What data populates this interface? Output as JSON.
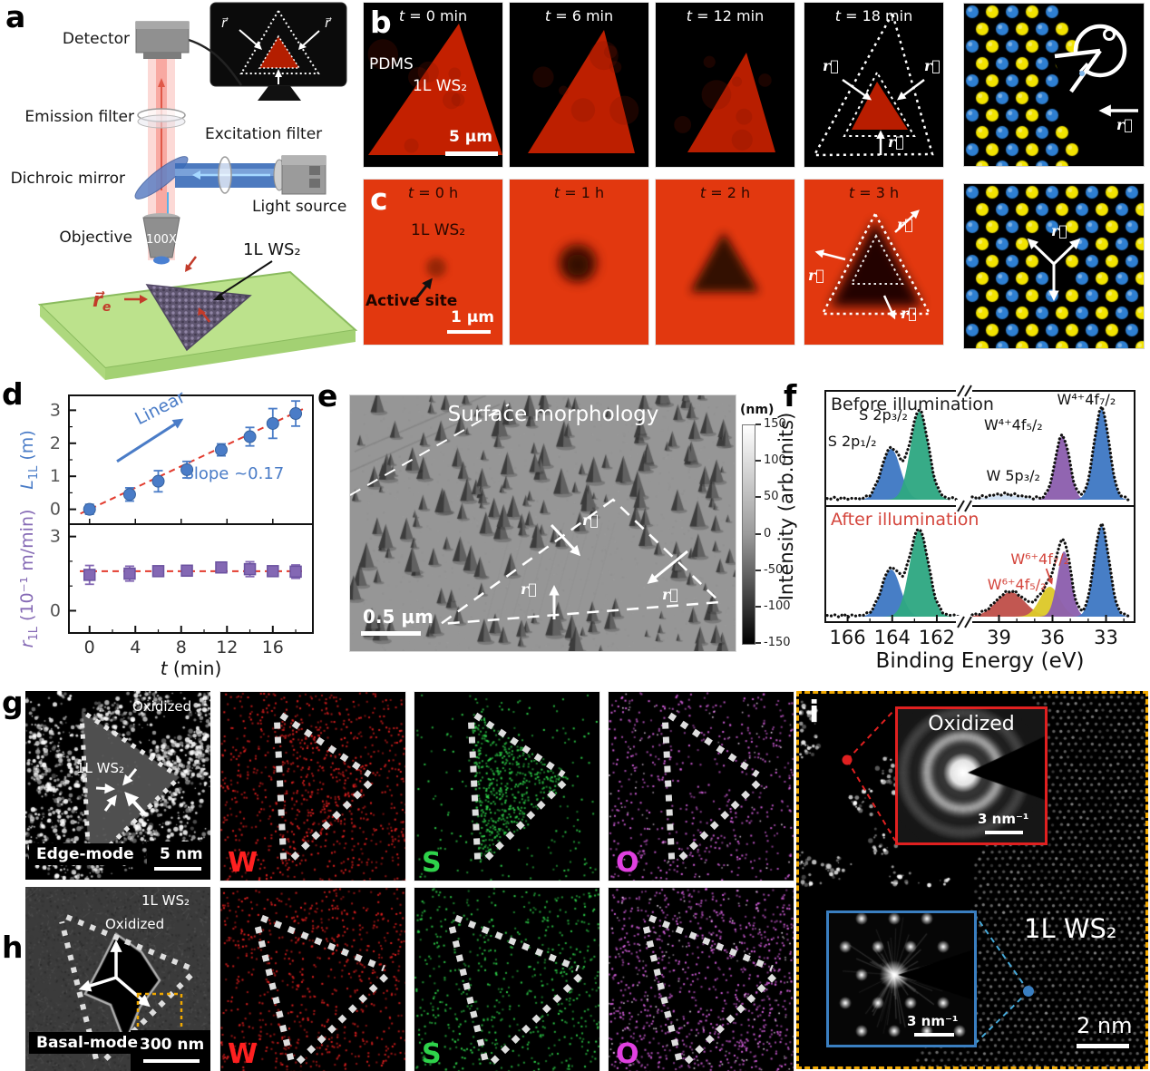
{
  "panels": {
    "a": "a",
    "b": "b",
    "c": "c",
    "d": "d",
    "e": "e",
    "f": "f",
    "g": "g",
    "h": "h",
    "i": "i"
  },
  "panel_a": {
    "detector": "Detector",
    "emission_filter": "Emission filter",
    "dichroic_mirror": "Dichroic mirror",
    "objective": "Objective",
    "excitation_filter": "Excitation filter",
    "light_source": "Light source",
    "magnification": "100X",
    "sample": "1L WS₂",
    "r_e_base": "r⃗",
    "r_e_sub": "e",
    "r": "r⃗"
  },
  "panel_b": {
    "frames": [
      {
        "t": "t",
        "rest": " = 0 min"
      },
      {
        "t": "t",
        "rest": " = 6 min"
      },
      {
        "t": "t",
        "rest": " = 12 min"
      },
      {
        "t": "t",
        "rest": " = 18 min"
      }
    ],
    "pdms": "PDMS",
    "sample": "1L WS₂",
    "scalebar": "5 μm",
    "r": "r⃗"
  },
  "panel_c": {
    "frames": [
      {
        "t": "t",
        "rest": " = 0 h"
      },
      {
        "t": "t",
        "rest": " = 1 h"
      },
      {
        "t": "t",
        "rest": " = 2 h"
      },
      {
        "t": "t",
        "rest": " = 3 h"
      }
    ],
    "sample": "1L WS₂",
    "active_site": "Active site",
    "scalebar": "1 μm",
    "r": "r⃗"
  },
  "panel_e": {
    "title": "Surface morphology",
    "scalebar": "0.5 μm",
    "r": "r⃗"
  },
  "panel_g": {
    "oxidized": "Oxidized",
    "sample": "1L WS₂",
    "mode": "Edge-mode",
    "scalebar": "5 nm",
    "elements": [
      "W",
      "S",
      "O"
    ]
  },
  "panel_h": {
    "sample": "1L WS₂",
    "oxidized": "Oxidized",
    "mode": "Basal-mode",
    "scalebar": "300 nm",
    "elements": [
      "W",
      "S",
      "O"
    ]
  },
  "panel_i": {
    "oxidized": "Oxidized",
    "inset_scale": "3 nm⁻¹",
    "sample": "1L WS₂",
    "scalebar": "2 nm"
  },
  "colors": {
    "w_map": "#e62020",
    "s_map": "#2ed24a",
    "o_map": "#d860e0",
    "fluorescence_red": "#c32000",
    "c_background": "#e2380f",
    "series_blue": "#4a7cc7",
    "series_purple": "#8468b4",
    "fit_line": "#e23b2e",
    "xps_blue": "#3f79c4",
    "xps_green": "#2fa882",
    "xps_purple": "#8d5fae",
    "xps_red": "#c0504a",
    "xps_yellow": "#ddc92a",
    "inset_red_border": "#e02020",
    "inset_blue_border": "#3a7fc1",
    "panel_i_border": "#f0a800",
    "atom_blue": "#2e7fd2",
    "atom_yellow": "#f2e300"
  },
  "chart_data": [
    {
      "id": "panel_d_length",
      "type": "scatter",
      "x": [
        0,
        3.5,
        6,
        8.5,
        11.5,
        14,
        16,
        18
      ],
      "y": [
        0.0,
        0.45,
        0.85,
        1.2,
        1.8,
        2.2,
        2.6,
        2.9
      ],
      "yerr": [
        0.15,
        0.2,
        0.32,
        0.25,
        0.18,
        0.28,
        0.45,
        0.38
      ],
      "xlabel": {
        "t": "t",
        "rest": " (min)"
      },
      "ylabel": {
        "base": "L",
        "sub": "1L",
        "rest": " (m)"
      },
      "xticks": [
        0,
        4,
        8,
        12,
        16
      ],
      "yticks": [
        0,
        1,
        2,
        3
      ],
      "xlim": [
        -1.8,
        19.5
      ],
      "ylim": [
        -0.45,
        3.45
      ],
      "annotations": {
        "linear": "Linear",
        "slope": "Slope ~0.17"
      },
      "fit": {
        "slope": 0.163,
        "intercept": 0
      },
      "marker": "circle"
    },
    {
      "id": "panel_d_rate",
      "type": "scatter",
      "x": [
        0,
        3.5,
        6,
        8.5,
        11.5,
        14,
        16,
        18
      ],
      "y": [
        1.45,
        1.5,
        1.6,
        1.62,
        1.75,
        1.68,
        1.6,
        1.58
      ],
      "yerr": [
        0.38,
        0.3,
        0.18,
        0.15,
        0.12,
        0.3,
        0.15,
        0.27
      ],
      "ylabel": {
        "base": "r",
        "sub": "1L",
        "rest": " (10⁻¹ m/min)"
      },
      "xticks": [
        0,
        4,
        8,
        12,
        16
      ],
      "yticks": [
        0,
        3
      ],
      "xlim": [
        -1.8,
        19.5
      ],
      "ylim": [
        -0.9,
        3.5
      ],
      "mean_line": 1.6,
      "marker": "square"
    },
    {
      "id": "panel_f_xps",
      "type": "area",
      "xlabel": "Binding Energy (eV)",
      "ylabel": "Intensity (arb.units)",
      "left_xticks": [
        166,
        164,
        162
      ],
      "right_xticks": [
        39,
        36,
        33
      ],
      "left_range": [
        167.0,
        160.9
      ],
      "right_range": [
        40.6,
        31.4
      ],
      "panels": [
        {
          "label": "Before illumination",
          "label_color": "#1a1a1a",
          "left_peaks": [
            {
              "name": "S 2p₁/₂",
              "center": 164.05,
              "sigma": 0.42,
              "height": 0.56,
              "color": "#3f79c4"
            },
            {
              "name": "S 2p₃/₂",
              "center": 162.78,
              "sigma": 0.4,
              "height": 0.97,
              "color": "#2fa882"
            }
          ],
          "right_peaks": [
            {
              "name": "W 5p₃/₂",
              "center": 38.7,
              "sigma": 0.9,
              "height": 0.05,
              "color": "#cfe0f2"
            },
            {
              "name": "W⁴⁺4f₅/₂",
              "center": 35.45,
              "sigma": 0.4,
              "height": 0.7,
              "color": "#8d5fae"
            },
            {
              "name": "W⁴⁺4f₇/₂",
              "center": 33.25,
              "sigma": 0.42,
              "height": 1.0,
              "color": "#3f79c4"
            }
          ]
        },
        {
          "label": "After illumination",
          "label_color": "#d4453c",
          "left_peaks": [
            {
              "name": "S 2p₁/₂",
              "center": 164.05,
              "sigma": 0.42,
              "height": 0.52,
              "color": "#3f79c4"
            },
            {
              "name": "S 2p₃/₂",
              "center": 162.8,
              "sigma": 0.42,
              "height": 0.95,
              "color": "#2fa882"
            }
          ],
          "right_peaks": [
            {
              "name": "W⁶⁺4f₅/₂",
              "center": 38.35,
              "sigma": 0.8,
              "height": 0.27,
              "color": "#c0504a"
            },
            {
              "name": "W⁶⁺4f₇/₂",
              "center": 36.15,
              "sigma": 0.55,
              "height": 0.33,
              "color": "#ddc92a"
            },
            {
              "name": "W⁴⁺4f₅/₂",
              "center": 35.35,
              "sigma": 0.38,
              "height": 0.72,
              "color": "#8d5fae"
            },
            {
              "name": "W⁴⁺4f₇/₂",
              "center": 33.25,
              "sigma": 0.42,
              "height": 1.0,
              "color": "#3f79c4"
            }
          ]
        }
      ]
    },
    {
      "id": "panel_e_colorbar",
      "type": "colorbar",
      "unit": "(nm)",
      "ticks": [
        150,
        100,
        50,
        0,
        -50,
        -100,
        -150
      ],
      "range": [
        150,
        -150
      ]
    }
  ]
}
